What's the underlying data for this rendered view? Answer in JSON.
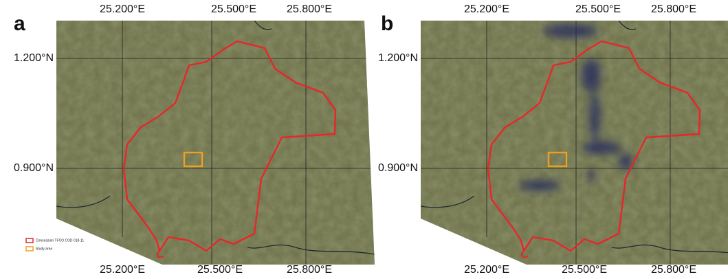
{
  "panels": [
    {
      "label": "a",
      "top_x_labels": [
        "25.200°E",
        "25.500°E",
        "25.800°E"
      ],
      "bottom_x_labels": [
        "25.200°E",
        "25.500°E",
        "25.800°E"
      ],
      "y_labels": [
        "1.200°N",
        "0.900°N"
      ],
      "legend": [
        "Concession TFCO COD 018-11",
        "Study area"
      ]
    },
    {
      "label": "b",
      "top_x_labels": [
        "25.200°E",
        "25.500°E",
        "25.800°E"
      ],
      "bottom_x_labels": [
        "25.200°E",
        "25.500°E",
        "25.800°E"
      ],
      "y_labels": [
        "1.200°N",
        "0.900°N"
      ]
    }
  ]
}
